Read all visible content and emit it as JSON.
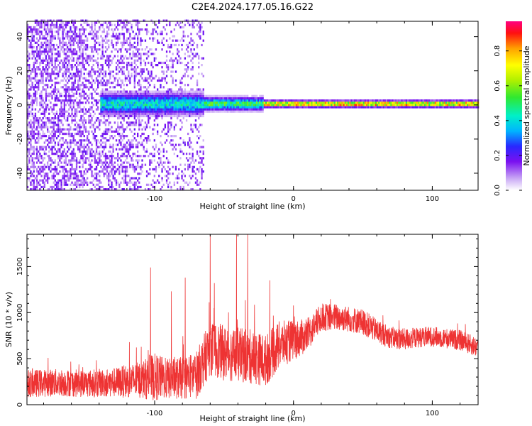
{
  "title": "C2E4.2024.177.05.16.G22",
  "chart_data": [
    {
      "type": "heatmap",
      "xlabel": "Height of straight line (km)",
      "ylabel": "Frequency (Hz)",
      "xlim": [
        -192,
        133
      ],
      "ylim": [
        -50,
        49
      ],
      "xticks": [
        -100,
        0,
        100
      ],
      "yticks": [
        -40,
        -20,
        0,
        20,
        40
      ],
      "colorbar": {
        "label": "Normalized spectral amplitude",
        "range": [
          0,
          0.97
        ],
        "ticks": [
          "0.0",
          "0.2",
          "0.4",
          "0.6",
          "0.8"
        ],
        "tick_values": [
          0.0,
          0.2,
          0.4,
          0.6,
          0.8
        ]
      },
      "ridge": {
        "frequency_hz": 0,
        "segments": [
          {
            "x_start": -140,
            "x_end": -65,
            "peak_amplitude": 0.45,
            "spread_hz": 5
          },
          {
            "x_start": -65,
            "x_end": -22,
            "peak_amplitude": 0.55,
            "spread_hz": 3
          },
          {
            "x_start": -22,
            "x_end": 133,
            "peak_amplitude": 0.9,
            "spread_hz": 1.5
          }
        ]
      },
      "noise_region": {
        "x_start": -192,
        "x_end": -65,
        "amplitude_range": [
          0.05,
          0.2
        ]
      },
      "grid": false
    },
    {
      "type": "line",
      "xlabel": "Height of straight line (km)",
      "ylabel": "SNR (10 * v/v)",
      "xlim": [
        -192,
        133
      ],
      "ylim": [
        0,
        1850
      ],
      "xticks": [
        -100,
        0,
        100
      ],
      "yticks": [
        0,
        500,
        1000,
        1500
      ],
      "color": "#ee3333",
      "grid": false,
      "envelope": {
        "x": [
          -192,
          -170,
          -150,
          -130,
          -110,
          -100,
          -90,
          -80,
          -70,
          -60,
          -50,
          -40,
          -30,
          -20,
          -10,
          0,
          10,
          20,
          30,
          40,
          50,
          60,
          70,
          80,
          90,
          100,
          110,
          120,
          133
        ],
        "mean": [
          230,
          240,
          230,
          240,
          270,
          300,
          280,
          290,
          320,
          620,
          560,
          540,
          520,
          480,
          650,
          700,
          750,
          950,
          950,
          930,
          900,
          800,
          730,
          710,
          730,
          740,
          720,
          700,
          620
        ],
        "spread": [
          150,
          150,
          150,
          160,
          200,
          260,
          220,
          230,
          260,
          300,
          300,
          300,
          300,
          280,
          260,
          220,
          180,
          150,
          150,
          140,
          140,
          130,
          120,
          120,
          110,
          110,
          110,
          110,
          110
        ]
      },
      "spikes": [
        {
          "x": -103,
          "y": 1490
        },
        {
          "x": -88,
          "y": 1230
        },
        {
          "x": -78,
          "y": 1380
        },
        {
          "x": -60,
          "y": 1850
        },
        {
          "x": -57,
          "y": 1320
        },
        {
          "x": -41,
          "y": 1850
        },
        {
          "x": -33,
          "y": 1850
        },
        {
          "x": -17,
          "y": 1350
        }
      ]
    }
  ]
}
